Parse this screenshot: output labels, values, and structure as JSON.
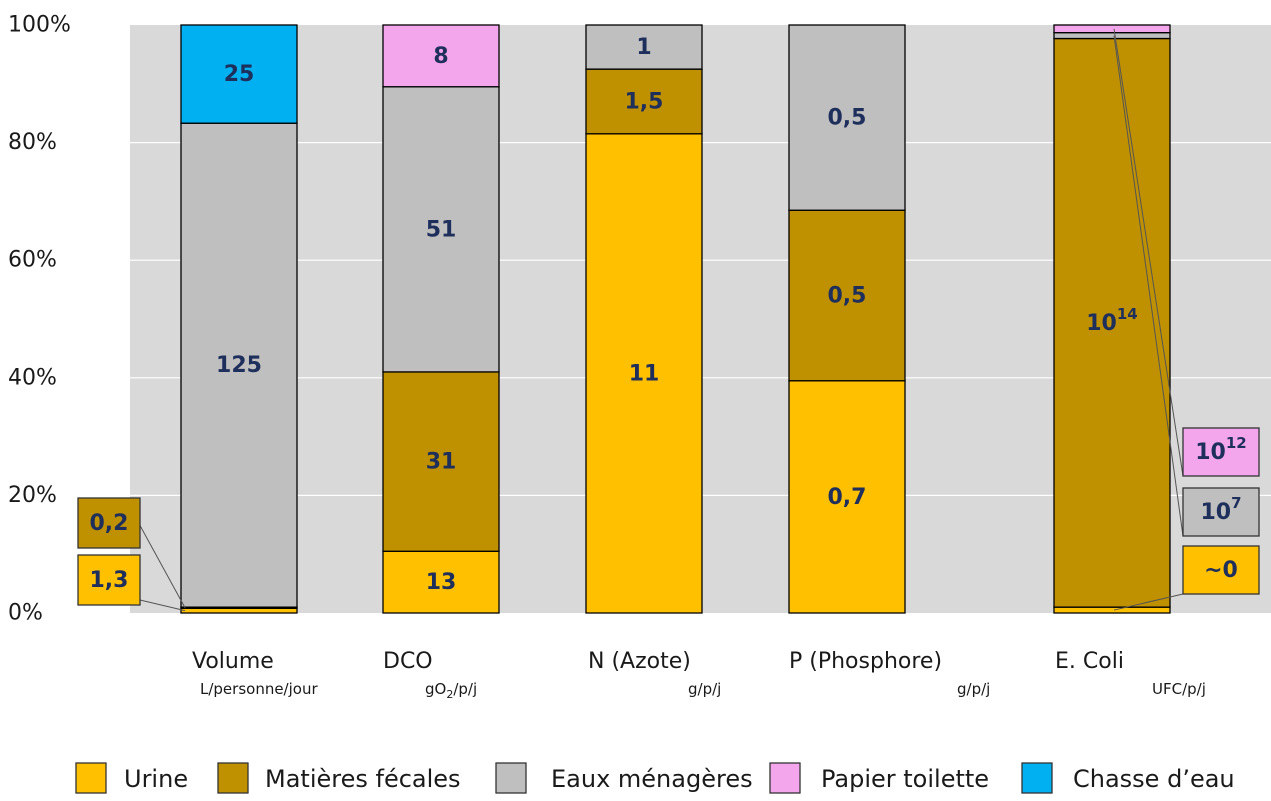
{
  "chart_data": {
    "type": "bar",
    "stacked": true,
    "normalized_percent": true,
    "title": "",
    "ylim": [
      0,
      100
    ],
    "y_ticks": [
      "0%",
      "20%",
      "40%",
      "60%",
      "80%",
      "100%"
    ],
    "categories": [
      {
        "name": "Volume",
        "unit": "L/personne/jour"
      },
      {
        "name": "DCO",
        "unit_parts": [
          "gO",
          "2",
          "/p/j"
        ]
      },
      {
        "name": "N (Azote)",
        "unit": "g/p/j"
      },
      {
        "name": "P (Phosphore)",
        "unit": "g/p/j"
      },
      {
        "name": "E. Coli",
        "unit": "UFC/p/j"
      }
    ],
    "series": [
      {
        "name": "Urine",
        "color": "#ffc000",
        "percent": [
          0.8,
          10.5,
          81.5,
          39.5,
          1.0
        ],
        "labels": [
          {
            "text": "1,3"
          },
          {
            "text": "13"
          },
          {
            "text": "11"
          },
          {
            "text": "0,7"
          },
          {
            "text": "~0"
          }
        ]
      },
      {
        "name": "Matières fécales",
        "color": "#bf9000",
        "percent": [
          0.2,
          30.5,
          11.0,
          29.0,
          96.7
        ],
        "labels": [
          {
            "text": "0,2"
          },
          {
            "text": "31"
          },
          {
            "text": "1,5"
          },
          {
            "text": "0,5"
          },
          {
            "text": "10",
            "sup": "14"
          }
        ]
      },
      {
        "name": "Eaux ménagères",
        "color": "#bfbfbf",
        "percent": [
          82.3,
          48.5,
          7.5,
          31.5,
          1.0
        ],
        "labels": [
          {
            "text": "125"
          },
          {
            "text": "51"
          },
          {
            "text": "1"
          },
          {
            "text": "0,5"
          },
          {
            "text": "10",
            "sup": "7"
          }
        ]
      },
      {
        "name": "Papier toilette",
        "color": "#f4a6ec",
        "percent": [
          0,
          10.5,
          0,
          0,
          1.3
        ],
        "labels": [
          {
            "text": ""
          },
          {
            "text": "8"
          },
          {
            "text": ""
          },
          {
            "text": ""
          },
          {
            "text": "10",
            "sup": "12"
          }
        ]
      },
      {
        "name": "Chasse d'eau",
        "legend_text": "Chasse d’eau",
        "color": "#00b0f0",
        "percent": [
          16.7,
          0,
          0,
          0,
          0
        ],
        "labels": [
          {
            "text": "25"
          },
          {
            "text": ""
          },
          {
            "text": ""
          },
          {
            "text": ""
          },
          {
            "text": ""
          }
        ]
      }
    ],
    "callouts": [
      {
        "category": 0,
        "series": 0
      },
      {
        "category": 0,
        "series": 1
      },
      {
        "category": 4,
        "series": 0
      },
      {
        "category": 4,
        "series": 2
      },
      {
        "category": 4,
        "series": 3
      }
    ],
    "colors": {
      "plot_background": "#d9d9d9",
      "gridline": "#ffffff",
      "label_text": "#1f2f5c"
    },
    "legend_position": "bottom",
    "grid": true
  }
}
